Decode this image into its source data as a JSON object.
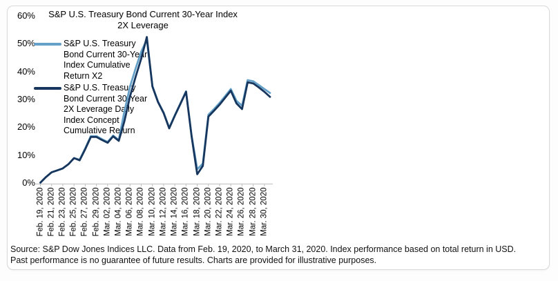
{
  "card": {
    "title_line1": "S&P U.S. Treasury Bond Current 30-Year Index",
    "title_line2": "2X Leverage",
    "source_line1": "Source: S&P Dow Jones Indices LLC. Data from Feb. 19, 2020, to March 31, 2020. Index performance based on total return in USD.",
    "source_line2": "Past performance is no guarantee of future results. Charts are provided for illustrative purposes."
  },
  "chart_data": {
    "type": "line",
    "title": "S&P U.S. Treasury Bond Current 30-Year Index 2X Leverage",
    "x_unit": "Daily, Feb. 19, 2020 to March 31, 2020",
    "ylim": [
      0,
      60
    ],
    "ytick_labels": [
      "60%",
      "50%",
      "40%",
      "30%",
      "20%",
      "10%",
      "0%"
    ],
    "xtick_labels": [
      "Feb. 19, 2020",
      "Feb. 21, 2020",
      "Feb. 23, 2020",
      "Feb. 25, 2020",
      "Feb. 27, 2020",
      "Feb. 29, 2020",
      "Mar. 02, 2020",
      "Mar. 04, 2020",
      "Mar. 06, 2020",
      "Mar. 08, 2020",
      "Mar. 10, 2020",
      "Mar. 12, 2020",
      "Mar. 14, 2020",
      "Mar. 16, 2020",
      "Mar. 18, 2020",
      "Mar. 20, 2020",
      "Mar. 22, 2020",
      "Mar. 24, 2020",
      "Mar. 26, 2020",
      "Mar. 28, 2020",
      "Mar. 30, 2020"
    ],
    "grid": false,
    "legend_position": "upper-left-overlay",
    "axis_color": "#bfbfbf",
    "series": [
      {
        "name": "S&P U.S. Treasury Bond Current 30-Year Index Cumulative Return X2",
        "color": "#64A0C8",
        "values_pct": [
          0.0,
          2.0,
          3.7,
          4.4,
          5.1,
          6.6,
          8.8,
          8.2,
          12.3,
          16.7,
          16.7,
          15.6,
          14.6,
          16.9,
          15.3,
          25.5,
          34.5,
          41.0,
          47.0,
          51.3,
          34.7,
          29.1,
          25.2,
          19.7,
          24.2,
          28.5,
          32.8,
          16.8,
          4.8,
          6.8,
          24.4,
          26.4,
          28.6,
          31.1,
          33.6,
          29.4,
          27.6,
          36.8,
          36.4,
          35.0,
          33.6,
          32.2
        ]
      },
      {
        "name": "S&P U.S. Treasury Bond Current 30-Year 2X Leverage Daily Index Concept Cumulative Return",
        "color": "#17365D",
        "values_pct": [
          0.0,
          2.0,
          3.7,
          4.4,
          5.1,
          6.6,
          8.8,
          8.0,
          12.0,
          16.4,
          16.4,
          15.3,
          14.3,
          16.6,
          15.0,
          22.0,
          31.0,
          38.0,
          44.5,
          52.3,
          34.5,
          28.9,
          25.0,
          19.5,
          24.0,
          28.3,
          32.6,
          16.5,
          3.0,
          6.0,
          23.7,
          25.8,
          28.0,
          30.5,
          33.0,
          28.5,
          26.4,
          36.0,
          35.6,
          34.2,
          32.6,
          30.8
        ]
      }
    ]
  }
}
